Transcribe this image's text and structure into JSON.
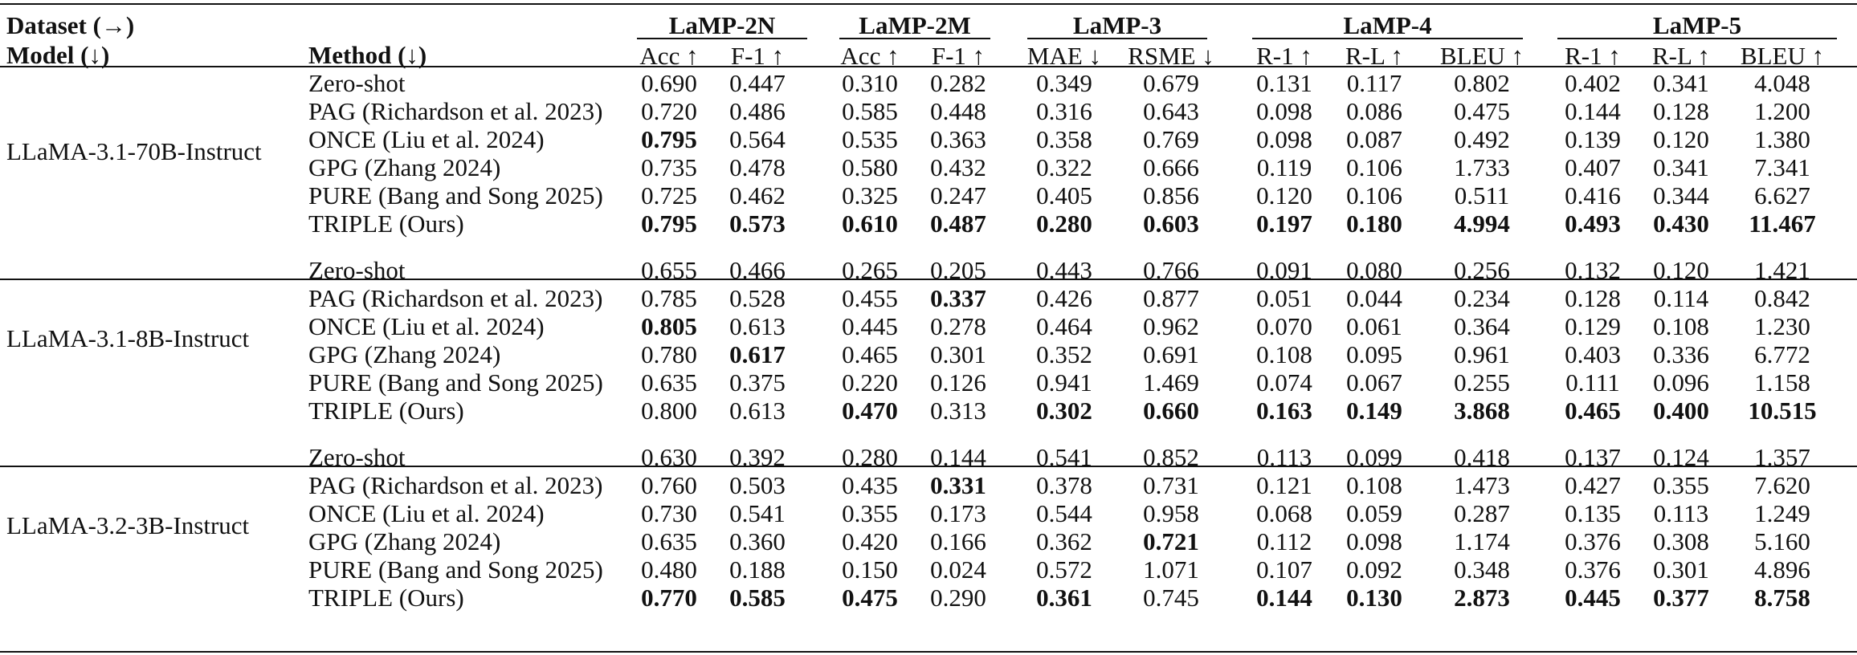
{
  "header": {
    "dataset_label": "Dataset (→)",
    "model_label": "Model (↓)",
    "method_label": "Method (↓)",
    "datasets": [
      {
        "name": "LaMP-2N",
        "metrics": [
          "Acc ↑",
          "F-1 ↑"
        ]
      },
      {
        "name": "LaMP-2M",
        "metrics": [
          "Acc ↑",
          "F-1 ↑"
        ]
      },
      {
        "name": "LaMP-3",
        "metrics": [
          "MAE ↓",
          "RSME ↓"
        ]
      },
      {
        "name": "LaMP-4",
        "metrics": [
          "R-1 ↑",
          "R-L ↑",
          "BLEU ↑"
        ]
      },
      {
        "name": "LaMP-5",
        "metrics": [
          "R-1 ↑",
          "R-L ↑",
          "BLEU ↑"
        ]
      }
    ]
  },
  "groups": [
    {
      "model": "LLaMA-3.1-70B-Instruct",
      "rows": [
        {
          "method": "Zero-shot",
          "values": [
            "0.690",
            "0.447",
            "0.310",
            "0.282",
            "0.349",
            "0.679",
            "0.131",
            "0.117",
            "0.802",
            "0.402",
            "0.341",
            "4.048"
          ],
          "bold": []
        },
        {
          "method": "PAG (Richardson et al. 2023)",
          "values": [
            "0.720",
            "0.486",
            "0.585",
            "0.448",
            "0.316",
            "0.643",
            "0.098",
            "0.086",
            "0.475",
            "0.144",
            "0.128",
            "1.200"
          ],
          "bold": []
        },
        {
          "method": "ONCE (Liu et al. 2024)",
          "values": [
            "0.795",
            "0.564",
            "0.535",
            "0.363",
            "0.358",
            "0.769",
            "0.098",
            "0.087",
            "0.492",
            "0.139",
            "0.120",
            "1.380"
          ],
          "bold": [
            0
          ]
        },
        {
          "method": "GPG (Zhang 2024)",
          "values": [
            "0.735",
            "0.478",
            "0.580",
            "0.432",
            "0.322",
            "0.666",
            "0.119",
            "0.106",
            "1.733",
            "0.407",
            "0.341",
            "7.341"
          ],
          "bold": []
        },
        {
          "method": "PURE (Bang and Song 2025)",
          "values": [
            "0.725",
            "0.462",
            "0.325",
            "0.247",
            "0.405",
            "0.856",
            "0.120",
            "0.106",
            "0.511",
            "0.416",
            "0.344",
            "6.627"
          ],
          "bold": []
        },
        {
          "method": "TRIPLE (Ours)",
          "values": [
            "0.795",
            "0.573",
            "0.610",
            "0.487",
            "0.280",
            "0.603",
            "0.197",
            "0.180",
            "4.994",
            "0.493",
            "0.430",
            "11.467"
          ],
          "bold": [
            0,
            1,
            2,
            3,
            4,
            5,
            6,
            7,
            8,
            9,
            10,
            11
          ]
        }
      ]
    },
    {
      "model": "LLaMA-3.1-8B-Instruct",
      "rows": [
        {
          "method": "Zero-shot",
          "values": [
            "0.655",
            "0.466",
            "0.265",
            "0.205",
            "0.443",
            "0.766",
            "0.091",
            "0.080",
            "0.256",
            "0.132",
            "0.120",
            "1.421"
          ],
          "bold": []
        },
        {
          "method": "PAG (Richardson et al. 2023)",
          "values": [
            "0.785",
            "0.528",
            "0.455",
            "0.337",
            "0.426",
            "0.877",
            "0.051",
            "0.044",
            "0.234",
            "0.128",
            "0.114",
            "0.842"
          ],
          "bold": [
            3
          ]
        },
        {
          "method": "ONCE (Liu et al. 2024)",
          "values": [
            "0.805",
            "0.613",
            "0.445",
            "0.278",
            "0.464",
            "0.962",
            "0.070",
            "0.061",
            "0.364",
            "0.129",
            "0.108",
            "1.230"
          ],
          "bold": [
            0
          ]
        },
        {
          "method": "GPG (Zhang 2024)",
          "values": [
            "0.780",
            "0.617",
            "0.465",
            "0.301",
            "0.352",
            "0.691",
            "0.108",
            "0.095",
            "0.961",
            "0.403",
            "0.336",
            "6.772"
          ],
          "bold": [
            1
          ]
        },
        {
          "method": "PURE (Bang and Song 2025)",
          "values": [
            "0.635",
            "0.375",
            "0.220",
            "0.126",
            "0.941",
            "1.469",
            "0.074",
            "0.067",
            "0.255",
            "0.111",
            "0.096",
            "1.158"
          ],
          "bold": []
        },
        {
          "method": "TRIPLE (Ours)",
          "values": [
            "0.800",
            "0.613",
            "0.470",
            "0.313",
            "0.302",
            "0.660",
            "0.163",
            "0.149",
            "3.868",
            "0.465",
            "0.400",
            "10.515"
          ],
          "bold": [
            2,
            4,
            5,
            6,
            7,
            8,
            9,
            10,
            11
          ]
        }
      ]
    },
    {
      "model": "LLaMA-3.2-3B-Instruct",
      "rows": [
        {
          "method": "Zero-shot",
          "values": [
            "0.630",
            "0.392",
            "0.280",
            "0.144",
            "0.541",
            "0.852",
            "0.113",
            "0.099",
            "0.418",
            "0.137",
            "0.124",
            "1.357"
          ],
          "bold": []
        },
        {
          "method": "PAG (Richardson et al. 2023)",
          "values": [
            "0.760",
            "0.503",
            "0.435",
            "0.331",
            "0.378",
            "0.731",
            "0.121",
            "0.108",
            "1.473",
            "0.427",
            "0.355",
            "7.620"
          ],
          "bold": [
            3
          ]
        },
        {
          "method": "ONCE (Liu et al. 2024)",
          "values": [
            "0.730",
            "0.541",
            "0.355",
            "0.173",
            "0.544",
            "0.958",
            "0.068",
            "0.059",
            "0.287",
            "0.135",
            "0.113",
            "1.249"
          ],
          "bold": []
        },
        {
          "method": "GPG (Zhang 2024)",
          "values": [
            "0.635",
            "0.360",
            "0.420",
            "0.166",
            "0.362",
            "0.721",
            "0.112",
            "0.098",
            "1.174",
            "0.376",
            "0.308",
            "5.160"
          ],
          "bold": [
            5
          ]
        },
        {
          "method": "PURE (Bang and Song 2025)",
          "values": [
            "0.480",
            "0.188",
            "0.150",
            "0.024",
            "0.572",
            "1.071",
            "0.107",
            "0.092",
            "0.348",
            "0.376",
            "0.301",
            "4.896"
          ],
          "bold": []
        },
        {
          "method": "TRIPLE (Ours)",
          "values": [
            "0.770",
            "0.585",
            "0.475",
            "0.290",
            "0.361",
            "0.745",
            "0.144",
            "0.130",
            "2.873",
            "0.445",
            "0.377",
            "8.758"
          ],
          "bold": [
            0,
            1,
            2,
            4,
            6,
            7,
            8,
            9,
            10,
            11
          ]
        }
      ]
    }
  ]
}
